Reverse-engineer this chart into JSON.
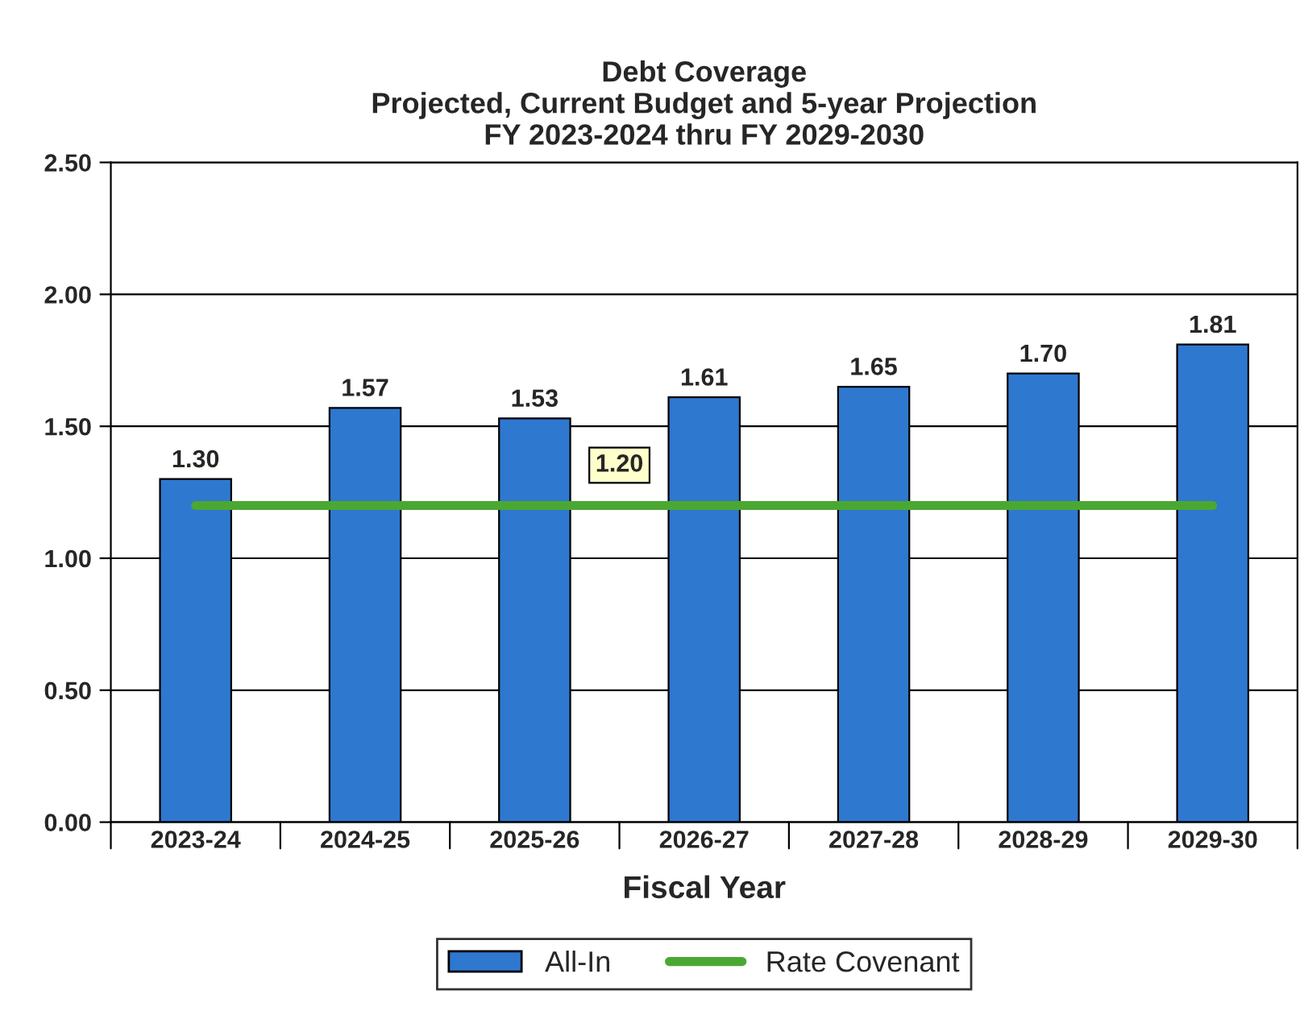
{
  "chart_data": {
    "type": "bar",
    "title": "Debt Coverage\nProjected, Current Budget and 5-year Projection\nFY 2023-2024 thru FY 2029-2030",
    "xlabel": "Fiscal Year",
    "categories": [
      "2023-24",
      "2024-25",
      "2025-26",
      "2026-27",
      "2027-28",
      "2028-29",
      "2029-30"
    ],
    "series": [
      {
        "name": "All-In",
        "color": "#2e78d0",
        "values": [
          1.3,
          1.57,
          1.53,
          1.61,
          1.65,
          1.7,
          1.81
        ],
        "value_labels": [
          "1.30",
          "1.57",
          "1.53",
          "1.61",
          "1.65",
          "1.70",
          "1.81"
        ]
      },
      {
        "name": "Rate Covenant",
        "type": "line",
        "color": "#4aa832",
        "values": [
          1.2,
          1.2,
          1.2,
          1.2,
          1.2,
          1.2,
          1.2
        ]
      }
    ],
    "annotations": [
      {
        "text": "1.20",
        "x": "2025-26",
        "y": 1.2
      }
    ],
    "ylim": [
      0,
      2.5
    ],
    "yticks": [
      {
        "value": 0,
        "label": "0.00"
      },
      {
        "value": 0.5,
        "label": "0.50"
      },
      {
        "value": 1.0,
        "label": "1.00"
      },
      {
        "value": 1.5,
        "label": "1.50"
      },
      {
        "value": 2.0,
        "label": "2.00"
      },
      {
        "value": 2.5,
        "label": "2.50"
      }
    ],
    "grid": "y",
    "legend": "bottom",
    "marker": "none",
    "line_style": "solid"
  }
}
